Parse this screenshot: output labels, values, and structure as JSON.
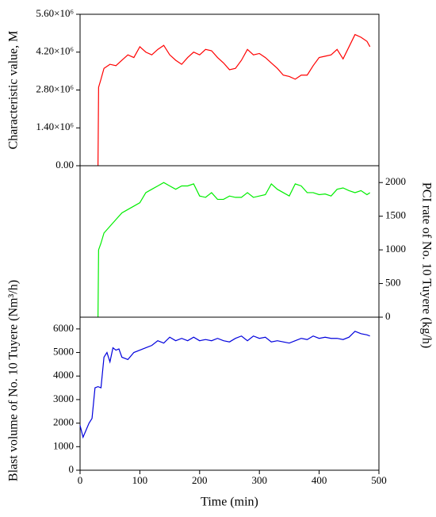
{
  "chart_data": [
    {
      "type": "line",
      "ylabel": "Characteristic value, M",
      "axis_side": "left",
      "x": [
        30,
        31,
        35,
        40,
        50,
        60,
        70,
        80,
        90,
        100,
        110,
        120,
        130,
        140,
        150,
        160,
        170,
        180,
        190,
        200,
        210,
        220,
        230,
        240,
        250,
        260,
        270,
        280,
        290,
        300,
        310,
        320,
        330,
        340,
        350,
        360,
        370,
        380,
        390,
        400,
        410,
        420,
        430,
        440,
        450,
        460,
        470,
        480,
        485
      ],
      "series": [
        {
          "name": "M",
          "color": "#ff0000",
          "values": [
            0,
            2900000,
            3200000,
            3600000,
            3750000,
            3700000,
            3900000,
            4100000,
            4000000,
            4400000,
            4200000,
            4100000,
            4300000,
            4450000,
            4100000,
            3900000,
            3750000,
            4000000,
            4200000,
            4100000,
            4300000,
            4250000,
            4000000,
            3800000,
            3550000,
            3600000,
            3900000,
            4300000,
            4100000,
            4150000,
            4000000,
            3800000,
            3600000,
            3350000,
            3300000,
            3200000,
            3350000,
            3350000,
            3700000,
            4000000,
            4050000,
            4100000,
            4300000,
            3950000,
            4400000,
            4850000,
            4750000,
            4600000,
            4400000
          ]
        }
      ],
      "xlim": [
        0,
        500
      ],
      "ylim": [
        0,
        5600000
      ],
      "yticks": [
        {
          "value": 0,
          "label": "0.00"
        },
        {
          "value": 1400000,
          "label": "1.40×10⁶"
        },
        {
          "value": 2800000,
          "label": "2.80×10⁶"
        },
        {
          "value": 4200000,
          "label": "4.20×10⁶"
        },
        {
          "value": 5600000,
          "label": "5.60×10⁶"
        }
      ]
    },
    {
      "type": "line",
      "ylabel": "PCI rate of No. 10 Tuyere (kg/h)",
      "axis_side": "right",
      "x": [
        30,
        31,
        35,
        40,
        50,
        60,
        70,
        80,
        90,
        100,
        110,
        120,
        130,
        140,
        150,
        160,
        170,
        180,
        190,
        200,
        210,
        220,
        230,
        240,
        250,
        260,
        270,
        280,
        290,
        300,
        310,
        320,
        330,
        340,
        350,
        360,
        370,
        380,
        390,
        400,
        410,
        420,
        430,
        440,
        450,
        460,
        470,
        480,
        485
      ],
      "series": [
        {
          "name": "PCI rate",
          "color": "#00ee00",
          "values": [
            0,
            1000,
            1100,
            1250,
            1350,
            1450,
            1550,
            1600,
            1650,
            1700,
            1850,
            1900,
            1950,
            2000,
            1950,
            1900,
            1950,
            1950,
            1980,
            1800,
            1780,
            1850,
            1750,
            1750,
            1800,
            1780,
            1780,
            1850,
            1780,
            1800,
            1820,
            1980,
            1900,
            1850,
            1800,
            1980,
            1950,
            1850,
            1850,
            1820,
            1830,
            1800,
            1900,
            1920,
            1880,
            1850,
            1880,
            1820,
            1850
          ]
        }
      ],
      "xlim": [
        0,
        500
      ],
      "ylim": [
        0,
        2250
      ],
      "yticks": [
        0,
        500,
        1000,
        1500,
        2000
      ]
    },
    {
      "type": "line",
      "ylabel": "Blast volume of No. 10 Tuyere  (Nm³/h)",
      "xlabel": "Time (min)",
      "axis_side": "left",
      "x": [
        0,
        5,
        10,
        15,
        20,
        25,
        30,
        35,
        40,
        45,
        50,
        55,
        60,
        65,
        70,
        80,
        90,
        100,
        110,
        120,
        130,
        140,
        150,
        160,
        170,
        180,
        190,
        200,
        210,
        220,
        230,
        240,
        250,
        260,
        270,
        280,
        290,
        300,
        310,
        320,
        330,
        340,
        350,
        360,
        370,
        380,
        390,
        400,
        410,
        420,
        430,
        440,
        450,
        460,
        470,
        480,
        485
      ],
      "series": [
        {
          "name": "Blast volume",
          "color": "#0000dd",
          "values": [
            1900,
            1400,
            1700,
            2000,
            2200,
            3500,
            3550,
            3500,
            4800,
            5000,
            4600,
            5200,
            5100,
            5150,
            4800,
            4700,
            5000,
            5100,
            5200,
            5300,
            5500,
            5400,
            5650,
            5500,
            5600,
            5500,
            5650,
            5500,
            5550,
            5500,
            5600,
            5500,
            5450,
            5600,
            5700,
            5500,
            5700,
            5600,
            5650,
            5450,
            5500,
            5450,
            5400,
            5500,
            5600,
            5550,
            5700,
            5600,
            5650,
            5600,
            5600,
            5550,
            5650,
            5900,
            5800,
            5750,
            5700
          ]
        }
      ],
      "xlim": [
        0,
        500
      ],
      "xticks": [
        0,
        100,
        200,
        300,
        400,
        500
      ],
      "ylim": [
        0,
        6500
      ],
      "yticks": [
        0,
        1000,
        2000,
        3000,
        4000,
        5000,
        6000
      ]
    }
  ]
}
